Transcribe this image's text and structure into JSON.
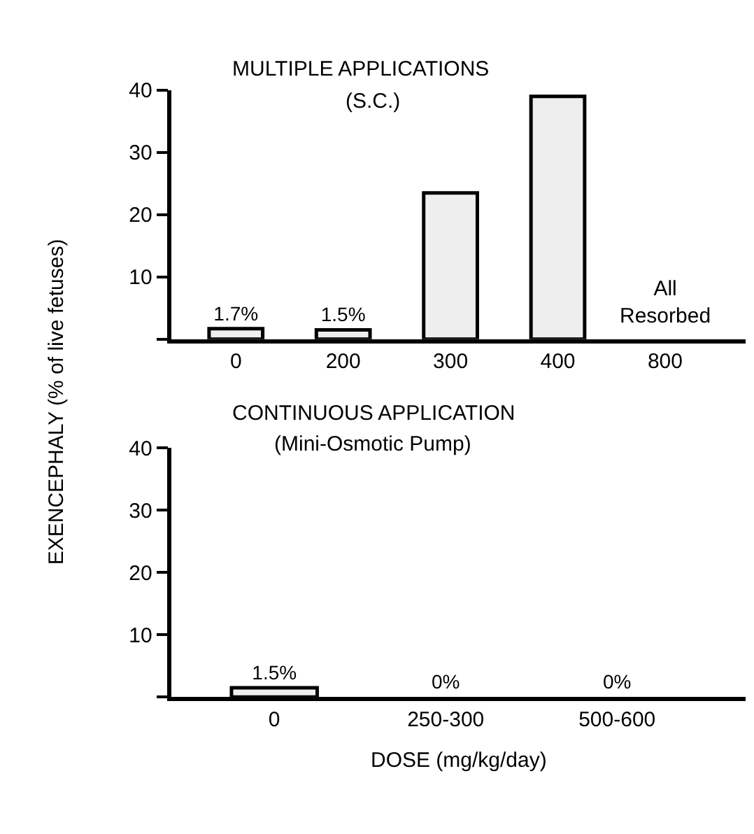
{
  "chart_data": [
    {
      "type": "bar",
      "title": "MULTIPLE APPLICATIONS",
      "subtitle": "(S.C.)",
      "ylabel": "EXENCEPHALY (% of live fetuses)",
      "categories": [
        "0",
        "200",
        "300",
        "400",
        "800"
      ],
      "values": [
        1.7,
        1.5,
        23.5,
        39,
        null
      ],
      "value_labels": [
        "1.7%",
        "1.5%",
        null,
        null,
        null
      ],
      "annotations": [
        "All\nResorbed"
      ],
      "color": "#eeeeee",
      "ylim": [
        0,
        40
      ],
      "yticks": [
        {
          "value": 0,
          "label": null
        },
        10,
        20,
        30,
        40
      ]
    },
    {
      "type": "bar",
      "title": "CONTINUOUS APPLICATION",
      "subtitle": "(Mini-Osmotic Pump)",
      "xlabel": "DOSE (mg/kg/day)",
      "categories": [
        "0",
        "250-300",
        "500-600"
      ],
      "values": [
        1.5,
        0,
        0
      ],
      "value_labels": [
        "1.5%",
        "0%",
        "0%"
      ],
      "color": "#eeeeee",
      "ylim": [
        0,
        40
      ],
      "yticks": [
        {
          "value": 0,
          "label": null
        },
        10,
        20,
        30,
        40
      ]
    }
  ]
}
